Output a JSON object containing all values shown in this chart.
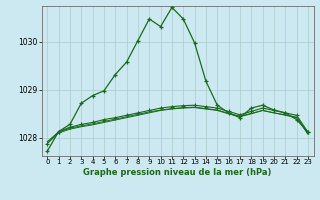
{
  "xlabel": "Graphe pression niveau de la mer (hPa)",
  "background_color": "#cce8f0",
  "grid_color": "#aacccc",
  "line_color": "#1a6b1a",
  "ylim": [
    1027.62,
    1030.75
  ],
  "xlim": [
    -0.5,
    23.5
  ],
  "yticks": [
    1028,
    1029,
    1030
  ],
  "xticks": [
    0,
    1,
    2,
    3,
    4,
    5,
    6,
    7,
    8,
    9,
    10,
    11,
    12,
    13,
    14,
    15,
    16,
    17,
    18,
    19,
    20,
    21,
    22,
    23
  ],
  "series1_x": [
    0,
    1,
    2,
    3,
    4,
    5,
    6,
    7,
    8,
    9,
    10,
    11,
    12,
    13,
    14,
    15,
    16,
    17,
    18,
    19,
    20,
    21,
    22,
    23
  ],
  "series1_y": [
    1027.72,
    1028.13,
    1028.28,
    1028.72,
    1028.88,
    1028.98,
    1029.32,
    1029.58,
    1030.03,
    1030.48,
    1030.32,
    1030.72,
    1030.48,
    1029.98,
    1029.18,
    1028.68,
    1028.52,
    1028.42,
    1028.62,
    1028.68,
    1028.58,
    1028.52,
    1028.38,
    1028.12
  ],
  "series2_x": [
    0,
    1,
    2,
    3,
    4,
    5,
    6,
    7,
    8,
    9,
    10,
    11,
    12,
    13,
    14,
    15,
    16,
    17,
    18,
    19,
    20,
    21,
    22,
    23
  ],
  "series2_y": [
    1027.88,
    1028.13,
    1028.22,
    1028.28,
    1028.32,
    1028.38,
    1028.42,
    1028.47,
    1028.52,
    1028.57,
    1028.62,
    1028.65,
    1028.67,
    1028.68,
    1028.65,
    1028.62,
    1028.55,
    1028.48,
    1028.55,
    1028.62,
    1028.57,
    1028.52,
    1028.47,
    1028.12
  ],
  "series3_x": [
    0,
    1,
    2,
    3,
    4,
    5,
    6,
    7,
    8,
    9,
    10,
    11,
    12,
    13,
    14,
    15,
    16,
    17,
    18,
    19,
    20,
    21,
    22,
    23
  ],
  "series3_y": [
    1027.88,
    1028.1,
    1028.18,
    1028.23,
    1028.27,
    1028.32,
    1028.37,
    1028.42,
    1028.47,
    1028.52,
    1028.57,
    1028.6,
    1028.62,
    1028.63,
    1028.6,
    1028.57,
    1028.5,
    1028.44,
    1028.5,
    1028.57,
    1028.52,
    1028.48,
    1028.43,
    1028.08
  ],
  "series4_x": [
    0,
    1,
    2,
    3,
    4,
    5,
    6,
    7,
    8,
    9,
    10,
    11,
    12,
    13,
    14,
    15,
    16,
    17,
    18,
    19,
    20,
    21,
    22,
    23
  ],
  "series4_y": [
    1027.92,
    1028.12,
    1028.2,
    1028.25,
    1028.29,
    1028.34,
    1028.39,
    1028.44,
    1028.49,
    1028.54,
    1028.58,
    1028.61,
    1028.63,
    1028.64,
    1028.61,
    1028.58,
    1028.51,
    1028.45,
    1028.51,
    1028.57,
    1028.52,
    1028.47,
    1028.42,
    1028.08
  ]
}
